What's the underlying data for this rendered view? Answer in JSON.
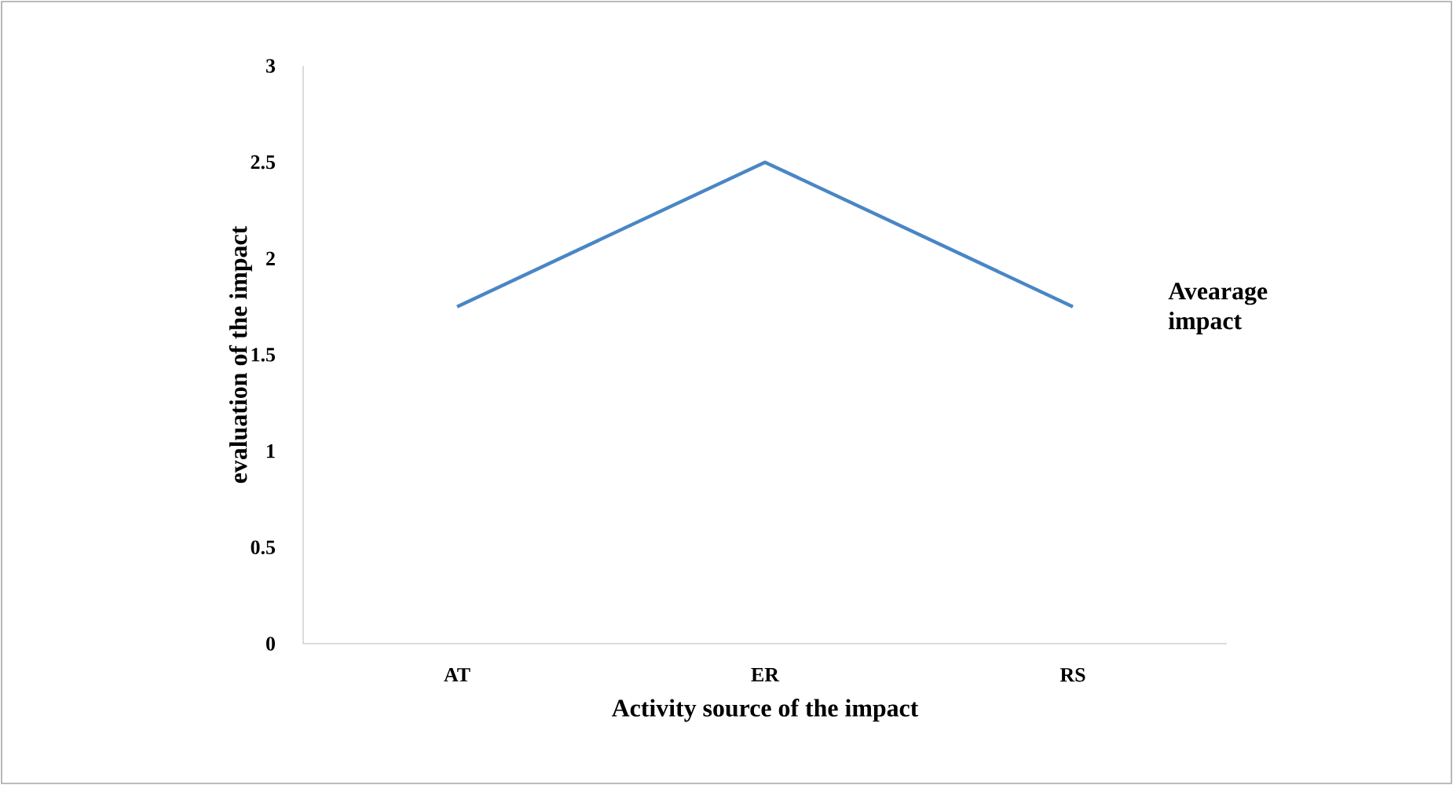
{
  "chart_data": {
    "type": "line",
    "xlabel": "Activity source of the impact",
    "ylabel": "evaluation of the impact",
    "categories": [
      "AT",
      "ER",
      "RS"
    ],
    "series": [
      {
        "name": "Avearage impact",
        "color": "#4a86c5",
        "values": [
          1.75,
          2.5,
          1.75
        ]
      }
    ],
    "ylim": [
      0,
      3
    ],
    "yticks": [
      0,
      0.5,
      1,
      1.5,
      2,
      2.5,
      3
    ],
    "grid": false,
    "marker": "none",
    "line_style": "solid"
  }
}
